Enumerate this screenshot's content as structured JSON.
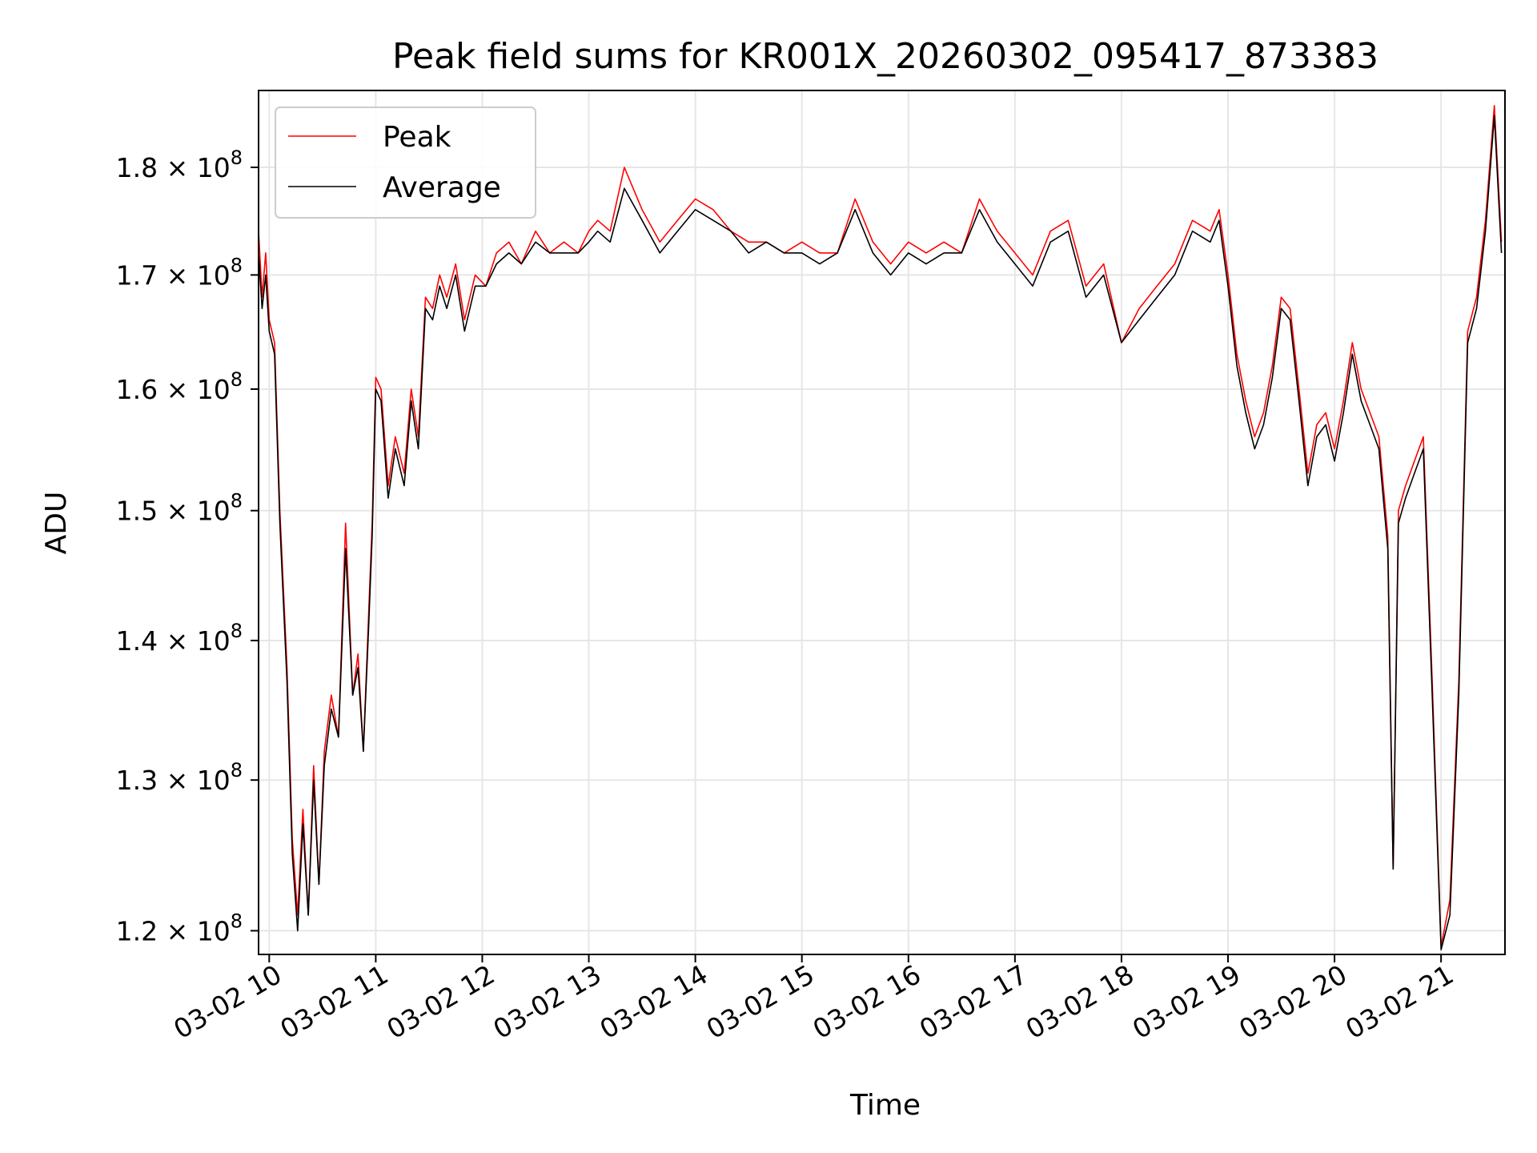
{
  "chart_data": {
    "type": "line",
    "title": "Peak field sums for KR001X_20260302_095417_873383",
    "xlabel": "Time",
    "ylabel": "ADU",
    "yscale": "log",
    "ylim": [
      118500000,
      187500000
    ],
    "xlim": [
      "03-02 09:54",
      "03-02 21:36"
    ],
    "grid": true,
    "legend_position": "top-left",
    "x_ticks": [
      "03-02 10",
      "03-02 11",
      "03-02 12",
      "03-02 13",
      "03-02 14",
      "03-02 15",
      "03-02 16",
      "03-02 17",
      "03-02 18",
      "03-02 19",
      "03-02 20",
      "03-02 21"
    ],
    "y_ticks": [
      {
        "value": 120000000,
        "mantissa": "1.2",
        "base": "10",
        "exponent": "8"
      },
      {
        "value": 130000000,
        "mantissa": "1.3",
        "base": "10",
        "exponent": "8"
      },
      {
        "value": 140000000,
        "mantissa": "1.4",
        "base": "10",
        "exponent": "8"
      },
      {
        "value": 150000000,
        "mantissa": "1.5",
        "base": "10",
        "exponent": "8"
      },
      {
        "value": 160000000,
        "mantissa": "1.6",
        "base": "10",
        "exponent": "8"
      },
      {
        "value": 170000000,
        "mantissa": "1.7",
        "base": "10",
        "exponent": "8"
      },
      {
        "value": 180000000,
        "mantissa": "1.8",
        "base": "10",
        "exponent": "8"
      }
    ],
    "series": [
      {
        "name": "Peak",
        "color": "#ff0000",
        "x": [
          "09:54",
          "09:56",
          "09:58",
          "10:00",
          "10:03",
          "10:06",
          "10:10",
          "10:13",
          "10:16",
          "10:19",
          "10:22",
          "10:25",
          "10:28",
          "10:31",
          "10:35",
          "10:39",
          "10:43",
          "10:47",
          "10:50",
          "10:53",
          "10:56",
          "10:58",
          "11:00",
          "11:03",
          "11:07",
          "11:11",
          "11:16",
          "11:20",
          "11:24",
          "11:28",
          "11:32",
          "11:36",
          "11:40",
          "11:45",
          "11:50",
          "11:56",
          "12:02",
          "12:08",
          "12:15",
          "12:22",
          "12:30",
          "12:38",
          "12:46",
          "12:54",
          "13:00",
          "13:05",
          "13:12",
          "13:20",
          "13:30",
          "13:40",
          "13:50",
          "14:00",
          "14:10",
          "14:20",
          "14:30",
          "14:40",
          "14:50",
          "15:00",
          "15:10",
          "15:20",
          "15:30",
          "15:40",
          "15:50",
          "16:00",
          "16:10",
          "16:20",
          "16:30",
          "16:40",
          "16:50",
          "17:00",
          "17:10",
          "17:20",
          "17:30",
          "17:40",
          "17:50",
          "18:00",
          "18:10",
          "18:20",
          "18:30",
          "18:40",
          "18:50",
          "18:55",
          "19:00",
          "19:05",
          "19:10",
          "19:15",
          "19:20",
          "19:25",
          "19:30",
          "19:35",
          "19:40",
          "19:45",
          "19:50",
          "19:55",
          "20:00",
          "20:05",
          "20:10",
          "20:15",
          "20:20",
          "20:25",
          "20:30",
          "20:33",
          "20:36",
          "20:40",
          "20:45",
          "20:50",
          "20:55",
          "21:00",
          "21:05",
          "21:10",
          "21:15",
          "21:20",
          "21:25",
          "21:30",
          "21:34"
        ],
        "values": [
          174000000,
          168000000,
          172000000,
          166000000,
          164000000,
          150000000,
          138000000,
          126000000,
          121000000,
          128000000,
          121000000,
          131000000,
          123000000,
          132000000,
          136000000,
          133000000,
          149000000,
          136000000,
          139000000,
          132000000,
          142000000,
          149000000,
          161000000,
          160000000,
          152000000,
          156000000,
          153000000,
          160000000,
          156000000,
          168000000,
          167000000,
          170000000,
          168000000,
          171000000,
          166000000,
          170000000,
          169000000,
          172000000,
          173000000,
          171000000,
          174000000,
          172000000,
          173000000,
          172000000,
          174000000,
          175000000,
          174000000,
          180000000,
          176000000,
          173000000,
          175000000,
          177000000,
          176000000,
          174000000,
          173000000,
          173000000,
          172000000,
          173000000,
          172000000,
          172000000,
          177000000,
          173000000,
          171000000,
          173000000,
          172000000,
          173000000,
          172000000,
          177000000,
          174000000,
          172000000,
          170000000,
          174000000,
          175000000,
          169000000,
          171000000,
          164000000,
          167000000,
          169000000,
          171000000,
          175000000,
          174000000,
          176000000,
          170000000,
          163000000,
          159000000,
          156000000,
          158000000,
          162000000,
          168000000,
          167000000,
          160000000,
          153000000,
          157000000,
          158000000,
          155000000,
          159000000,
          164000000,
          160000000,
          158000000,
          156000000,
          148000000,
          124000000,
          150000000,
          152000000,
          154000000,
          156000000,
          137000000,
          119000000,
          122000000,
          137000000,
          165000000,
          168000000,
          175000000,
          186000000,
          173000000
        ]
      },
      {
        "name": "Average",
        "color": "#000000",
        "x": [
          "09:54",
          "09:56",
          "09:58",
          "10:00",
          "10:03",
          "10:06",
          "10:10",
          "10:13",
          "10:16",
          "10:19",
          "10:22",
          "10:25",
          "10:28",
          "10:31",
          "10:35",
          "10:39",
          "10:43",
          "10:47",
          "10:50",
          "10:53",
          "10:56",
          "10:58",
          "11:00",
          "11:03",
          "11:07",
          "11:11",
          "11:16",
          "11:20",
          "11:24",
          "11:28",
          "11:32",
          "11:36",
          "11:40",
          "11:45",
          "11:50",
          "11:56",
          "12:02",
          "12:08",
          "12:15",
          "12:22",
          "12:30",
          "12:38",
          "12:46",
          "12:54",
          "13:00",
          "13:05",
          "13:12",
          "13:20",
          "13:30",
          "13:40",
          "13:50",
          "14:00",
          "14:10",
          "14:20",
          "14:30",
          "14:40",
          "14:50",
          "15:00",
          "15:10",
          "15:20",
          "15:30",
          "15:40",
          "15:50",
          "16:00",
          "16:10",
          "16:20",
          "16:30",
          "16:40",
          "16:50",
          "17:00",
          "17:10",
          "17:20",
          "17:30",
          "17:40",
          "17:50",
          "18:00",
          "18:10",
          "18:20",
          "18:30",
          "18:40",
          "18:50",
          "18:55",
          "19:00",
          "19:05",
          "19:10",
          "19:15",
          "19:20",
          "19:25",
          "19:30",
          "19:35",
          "19:40",
          "19:45",
          "19:50",
          "19:55",
          "20:00",
          "20:05",
          "20:10",
          "20:15",
          "20:20",
          "20:25",
          "20:30",
          "20:33",
          "20:36",
          "20:40",
          "20:45",
          "20:50",
          "20:55",
          "21:00",
          "21:05",
          "21:10",
          "21:15",
          "21:20",
          "21:25",
          "21:30",
          "21:34"
        ],
        "values": [
          172000000,
          167000000,
          170000000,
          165000000,
          163000000,
          149000000,
          137000000,
          125000000,
          120000000,
          127000000,
          121000000,
          130000000,
          123000000,
          131000000,
          135000000,
          133000000,
          147000000,
          136000000,
          138000000,
          132000000,
          141000000,
          148000000,
          160000000,
          159000000,
          151000000,
          155000000,
          152000000,
          159000000,
          155000000,
          167000000,
          166000000,
          169000000,
          167000000,
          170000000,
          165000000,
          169000000,
          169000000,
          171000000,
          172000000,
          171000000,
          173000000,
          172000000,
          172000000,
          172000000,
          173000000,
          174000000,
          173000000,
          178000000,
          175000000,
          172000000,
          174000000,
          176000000,
          175000000,
          174000000,
          172000000,
          173000000,
          172000000,
          172000000,
          171000000,
          172000000,
          176000000,
          172000000,
          170000000,
          172000000,
          171000000,
          172000000,
          172000000,
          176000000,
          173000000,
          171000000,
          169000000,
          173000000,
          174000000,
          168000000,
          170000000,
          164000000,
          166000000,
          168000000,
          170000000,
          174000000,
          173000000,
          175000000,
          169000000,
          162000000,
          158000000,
          155000000,
          157000000,
          161000000,
          167000000,
          166000000,
          159000000,
          152000000,
          156000000,
          157000000,
          154000000,
          158000000,
          163000000,
          159000000,
          157000000,
          155000000,
          147000000,
          124000000,
          149000000,
          151000000,
          153000000,
          155000000,
          136000000,
          118800000,
          121000000,
          136000000,
          164000000,
          167000000,
          174000000,
          185000000,
          172000000
        ]
      }
    ]
  }
}
